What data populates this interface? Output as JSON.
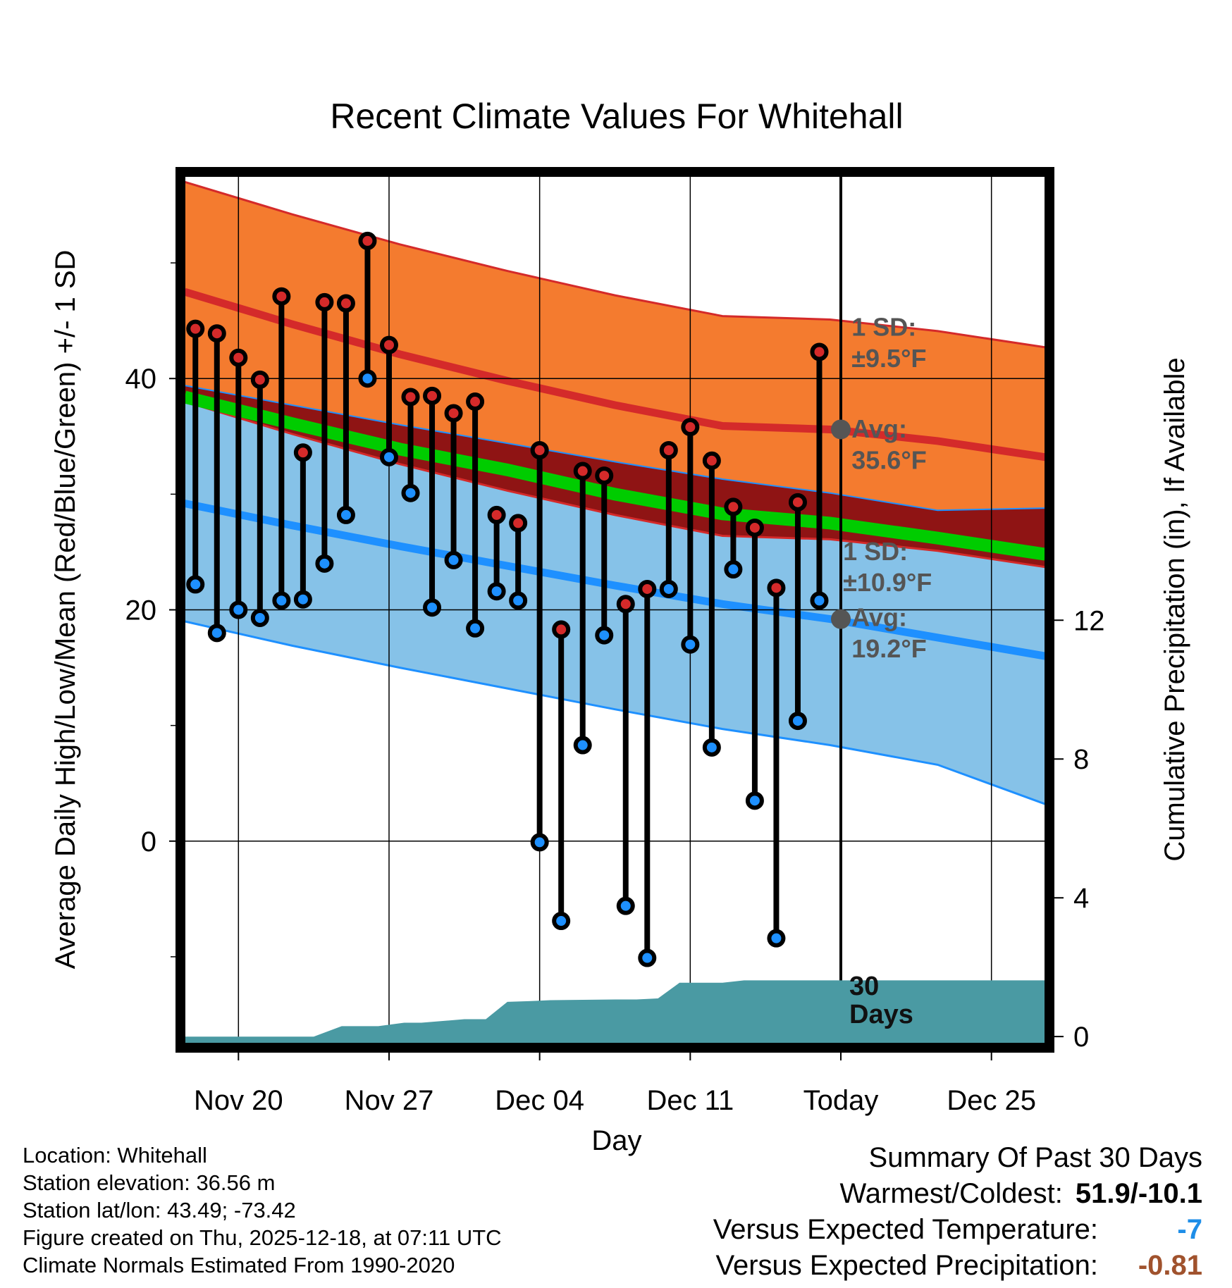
{
  "info": {
    "location": "Location: Whitehall",
    "elevation": "Station elevation: 36.56 m",
    "latlon": "Station lat/lon: 43.49; -73.42",
    "created": "Figure created on Thu, 2025-12-18, at 07:11 UTC",
    "normals": "Climate Normals Estimated From 1990-2020"
  },
  "summary": {
    "heading": "Summary Of Past 30 Days",
    "warmest_label": "Warmest/Coldest:",
    "warmest_value": "51.9/-10.1",
    "temp_label": "Versus Expected Temperature:",
    "temp_value": "-7",
    "temp_color": "#1e8ee8",
    "precip_label": "Versus Expected Precipitation:",
    "precip_value": "-0.81",
    "precip_color": "#a0522d"
  },
  "chart_data": {
    "type": "line",
    "title": "Recent Climate Values For Whitehall",
    "xlabel": "Day",
    "ylabel": "Average Daily High/Low/Mean (Red/Blue/Green) +/- 1 SD",
    "y2label": "Cumulative Precipitation (in), If Available",
    "xlim": [
      -2.5,
      37.5
    ],
    "ylim": [
      -17.5,
      57.5
    ],
    "y2lim": [
      -0.2,
      24.8
    ],
    "xticks": [
      {
        "day": 0,
        "label": "Nov 20"
      },
      {
        "day": 7,
        "label": "Nov 27"
      },
      {
        "day": 14,
        "label": "Dec 04"
      },
      {
        "day": 21,
        "label": "Dec 11"
      },
      {
        "day": 28,
        "label": "Today"
      },
      {
        "day": 35,
        "label": "Dec 25"
      }
    ],
    "yticks": [
      0,
      20,
      40
    ],
    "yminor": [
      -10,
      10,
      30,
      50
    ],
    "y2ticks": [
      0,
      4,
      8,
      12
    ],
    "today_day": 28,
    "colors": {
      "high_band": "#f47b2f",
      "high_line": "#d42a2a",
      "low_band": "#86c2e8",
      "low_line": "#1e90ff",
      "mean_line": "#00cc00",
      "overlap_band": "#8f1414",
      "precip": "#4a9aa3",
      "high_marker": "#d42a2a",
      "low_marker": "#1e90ff",
      "avg_dot": "#555555"
    },
    "normals": {
      "days": [
        -2.5,
        2.5,
        7.5,
        12.5,
        17.5,
        22.5,
        27.5,
        32.5,
        37.5
      ],
      "high_mean": [
        47.5,
        44.7,
        42.1,
        39.8,
        37.7,
        35.9,
        35.6,
        34.6,
        33.2
      ],
      "high_sd": [
        9.5,
        9.5,
        9.5,
        9.5,
        9.5,
        9.5,
        9.5,
        9.5,
        9.5
      ],
      "low_mean": [
        29.2,
        27.3,
        25.5,
        23.8,
        22.1,
        20.5,
        19.2,
        17.6,
        16.0
      ],
      "low_sd": [
        10.2,
        10.4,
        10.5,
        10.6,
        10.7,
        10.8,
        10.9,
        11.0,
        12.8
      ],
      "mean": [
        38.4,
        36.1,
        33.9,
        32.1,
        30.0,
        28.3,
        27.5,
        26.2,
        24.8
      ]
    },
    "series": [
      {
        "name": "High",
        "days": [
          -2,
          -1,
          0,
          1,
          2,
          3,
          4,
          5,
          6,
          7,
          8,
          9,
          10,
          11,
          12,
          13,
          14,
          15,
          16,
          17,
          18,
          19,
          20,
          21,
          22,
          23,
          24,
          25,
          26,
          27
        ],
        "values": [
          44.3,
          43.9,
          41.8,
          39.9,
          47.1,
          33.6,
          46.6,
          46.5,
          51.9,
          42.9,
          38.4,
          38.5,
          37.0,
          38.0,
          28.2,
          27.5,
          33.8,
          18.3,
          32.0,
          31.6,
          20.5,
          21.8,
          33.8,
          35.8,
          32.9,
          28.9,
          27.1,
          21.9,
          29.3,
          42.3
        ]
      },
      {
        "name": "Low",
        "days": [
          -2,
          -1,
          0,
          1,
          2,
          3,
          4,
          5,
          6,
          7,
          8,
          9,
          10,
          11,
          12,
          13,
          14,
          15,
          16,
          17,
          18,
          19,
          20,
          21,
          22,
          23,
          24,
          25,
          26,
          27
        ],
        "values": [
          22.2,
          18.0,
          20.0,
          19.3,
          20.8,
          20.9,
          24.0,
          28.2,
          40.0,
          33.2,
          30.1,
          20.2,
          24.3,
          18.4,
          21.6,
          20.8,
          -0.1,
          -6.9,
          8.3,
          17.8,
          -5.6,
          -10.1,
          21.8,
          17.0,
          8.1,
          23.5,
          3.5,
          -8.4,
          10.4,
          20.8
        ]
      },
      {
        "name": "Cumulative Precipitation",
        "days": [
          -2.5,
          3.5,
          4.8,
          6.5,
          7.7,
          8.5,
          9.5,
          10.5,
          11.5,
          12.5,
          13.5,
          14.5,
          17.5,
          18.5,
          19.5,
          20.5,
          22.5,
          23.5,
          24.5,
          25.5,
          37.5
        ],
        "values": [
          0,
          0,
          0.3,
          0.3,
          0.4,
          0.4,
          0.45,
          0.5,
          0.5,
          1.0,
          1.02,
          1.05,
          1.07,
          1.07,
          1.1,
          1.55,
          1.55,
          1.62,
          1.62,
          1.62,
          1.62
        ]
      }
    ],
    "annotations": [
      {
        "label": "1 SD:",
        "x": 28.5,
        "y": 43.7
      },
      {
        "label": "±9.5°F",
        "x": 28.5,
        "y": 41.0
      },
      {
        "label": "Avg:",
        "x": 28.5,
        "y": 34.9
      },
      {
        "label": "35.6°F",
        "x": 28.5,
        "y": 32.2
      },
      {
        "label": "1 SD:",
        "x": 28.1,
        "y": 24.3
      },
      {
        "label": "±10.9°F",
        "x": 28.1,
        "y": 21.6
      },
      {
        "label": "Avg:",
        "x": 28.5,
        "y": 18.6
      },
      {
        "label": "19.2°F",
        "x": 28.5,
        "y": 15.9
      }
    ],
    "period_label": [
      "30",
      "Days"
    ]
  }
}
